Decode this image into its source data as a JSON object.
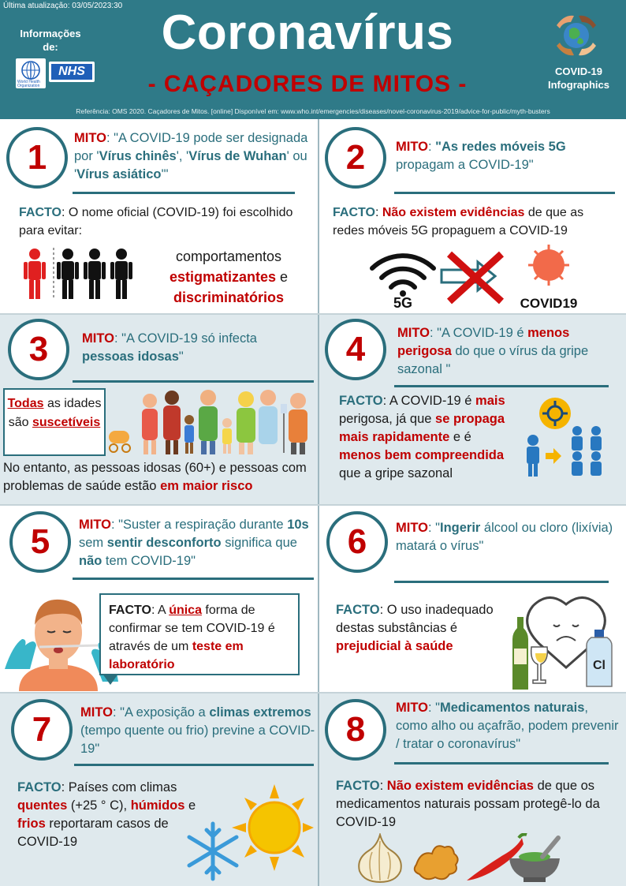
{
  "header": {
    "updated": "Última atualização: 03/05/2023:30",
    "info_label": "Informações de:",
    "who_text": "World Health Organization",
    "nhs_text": "NHS",
    "title": "Coronavírus",
    "subtitle": "- CAÇADORES DE MITOS -",
    "badge": "COVID-19 Infographics",
    "reference": "Referência: OMS 2020. Caçadores de Mitos. [online] Disponível em: www.who.int/emergencies/diseases/novel-coronavirus-2019/advice-for-public/myth-busters"
  },
  "labels": {
    "mito": "MITO",
    "facto": "FACTO"
  },
  "colors": {
    "teal": "#2f7a88",
    "red": "#c00000",
    "shade": "#dfe9ed"
  },
  "cards": [
    {
      "num": "1",
      "myth": [
        "\"A COVID-19 pode ser designada por '",
        "Vírus chinês",
        "', '",
        "Vírus de Wuhan",
        "' ou '",
        "Vírus asiático",
        "'\""
      ],
      "fact": [
        ": O nome oficial (COVID-19) foi escolhido para evitar:"
      ],
      "extra": [
        "comportamentos",
        "estigmatizantes",
        "e",
        "discriminatórios"
      ]
    },
    {
      "num": "2",
      "myth": [
        "\"As redes móveis 5G",
        " propagam a COVID-19\""
      ],
      "fact": [
        "Não existem evidências",
        " de que as redes móveis 5G propaguem a COVID-19"
      ],
      "icon_5g": "5G",
      "icon_covid": "COVID19"
    },
    {
      "num": "3",
      "myth": [
        "\"A COVID-19 só infecta ",
        "pessoas idosas",
        "\""
      ],
      "box": [
        "Todas",
        " as idades são ",
        "suscetíveis"
      ],
      "fact": [
        "No entanto, as pessoas idosas (60+) e pessoas com problemas de saúde estão ",
        "em maior risco"
      ]
    },
    {
      "num": "4",
      "myth": [
        "\"A COVID-19 é ",
        "menos perigosa",
        " do que o vírus da gripe sazonal \""
      ],
      "fact": [
        " A COVID-19 é ",
        "mais",
        " perigosa, já que ",
        "se propaga mais rapidamente",
        " e é ",
        "menos bem compreendida",
        " que a gripe sazonal"
      ]
    },
    {
      "num": "5",
      "myth": [
        "\"Suster a respiração durante ",
        "10s",
        " sem ",
        "sentir desconforto",
        " significa que ",
        "não",
        " tem COVID-19\""
      ],
      "fact": [
        ": A ",
        "única",
        " forma de confirmar se tem COVID-19 é através de um ",
        "teste em laboratório"
      ]
    },
    {
      "num": "6",
      "myth": [
        "\"",
        "Ingerir",
        " álcool ou cloro (lixívia) matará o vírus\""
      ],
      "fact": [
        " O uso inadequado destas substâncias é ",
        "prejudicial à saúde"
      ],
      "bottle_label": "Cl"
    },
    {
      "num": "7",
      "myth": [
        "\"A exposição a ",
        "climas extremos",
        " (tempo quente ou frio) previne a COVID-19\""
      ],
      "fact": [
        " Países com climas ",
        "quentes",
        " (+25 ° C), ",
        "húmidos",
        " e ",
        "frios",
        " reportaram casos de COVID-19"
      ]
    },
    {
      "num": "8",
      "myth": [
        "\"",
        "Medicamentos naturais",
        ", como alho ou açafrão, podem prevenir / tratar o coronavírus\""
      ],
      "fact": [
        "Não existem evidências",
        " de que os medicamentos naturais possam protegê-lo da COVID-19"
      ]
    }
  ]
}
